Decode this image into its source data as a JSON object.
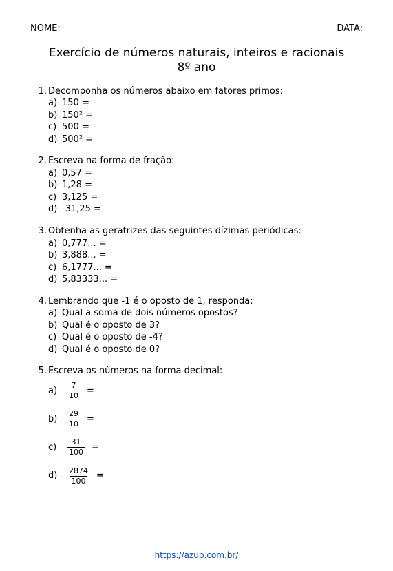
{
  "header": {
    "name_label": "NOME:",
    "date_label": "DATA:"
  },
  "title_line1": "Exercício de números naturais, inteiros e racionais",
  "title_line2": "8º ano",
  "questions": [
    {
      "num": "1.",
      "prompt": "Decomponha os números abaixo em fatores primos:",
      "items": [
        {
          "lbl": "a)",
          "txt": "150 ="
        },
        {
          "lbl": "b)",
          "txt": "150² ="
        },
        {
          "lbl": "c)",
          "txt": "500 ="
        },
        {
          "lbl": "d)",
          "txt": "500² ="
        }
      ]
    },
    {
      "num": "2.",
      "prompt": "Escreva na forma de fração:",
      "items": [
        {
          "lbl": "a)",
          "txt": "0,57 ="
        },
        {
          "lbl": "b)",
          "txt": "1,28 ="
        },
        {
          "lbl": "c)",
          "txt": "3,125 ="
        },
        {
          "lbl": "d)",
          "txt": "-31,25 ="
        }
      ]
    },
    {
      "num": "3.",
      "prompt": "Obtenha as geratrizes das seguintes dízimas periódicas:",
      "items": [
        {
          "lbl": "a)",
          "txt": "0,777... ="
        },
        {
          "lbl": "b)",
          "txt": "3,888... ="
        },
        {
          "lbl": "c)",
          "txt": "6,1777... ="
        },
        {
          "lbl": "d)",
          "txt": "5,83333... ="
        }
      ]
    },
    {
      "num": "4.",
      "prompt": "Lembrando que -1 é o oposto de 1, responda:",
      "items": [
        {
          "lbl": "a)",
          "txt": "Qual a soma de dois números opostos?"
        },
        {
          "lbl": "b)",
          "txt": "Qual é o oposto de 3?"
        },
        {
          "lbl": "c)",
          "txt": "Qual é o oposto de -4?"
        },
        {
          "lbl": "d)",
          "txt": "Qual é o oposto de 0?"
        }
      ]
    }
  ],
  "question5": {
    "num": "5.",
    "prompt": "Escreva os números na forma decimal:",
    "fracs": [
      {
        "lbl": "a)",
        "num": "7",
        "den": "10"
      },
      {
        "lbl": "b)",
        "num": "29",
        "den": "10"
      },
      {
        "lbl": "c)",
        "num": "31",
        "den": "100"
      },
      {
        "lbl": "d)",
        "num": "2874",
        "den": "100"
      }
    ],
    "eq": "="
  },
  "footer": {
    "url_text": "https://azup.com.br/"
  }
}
